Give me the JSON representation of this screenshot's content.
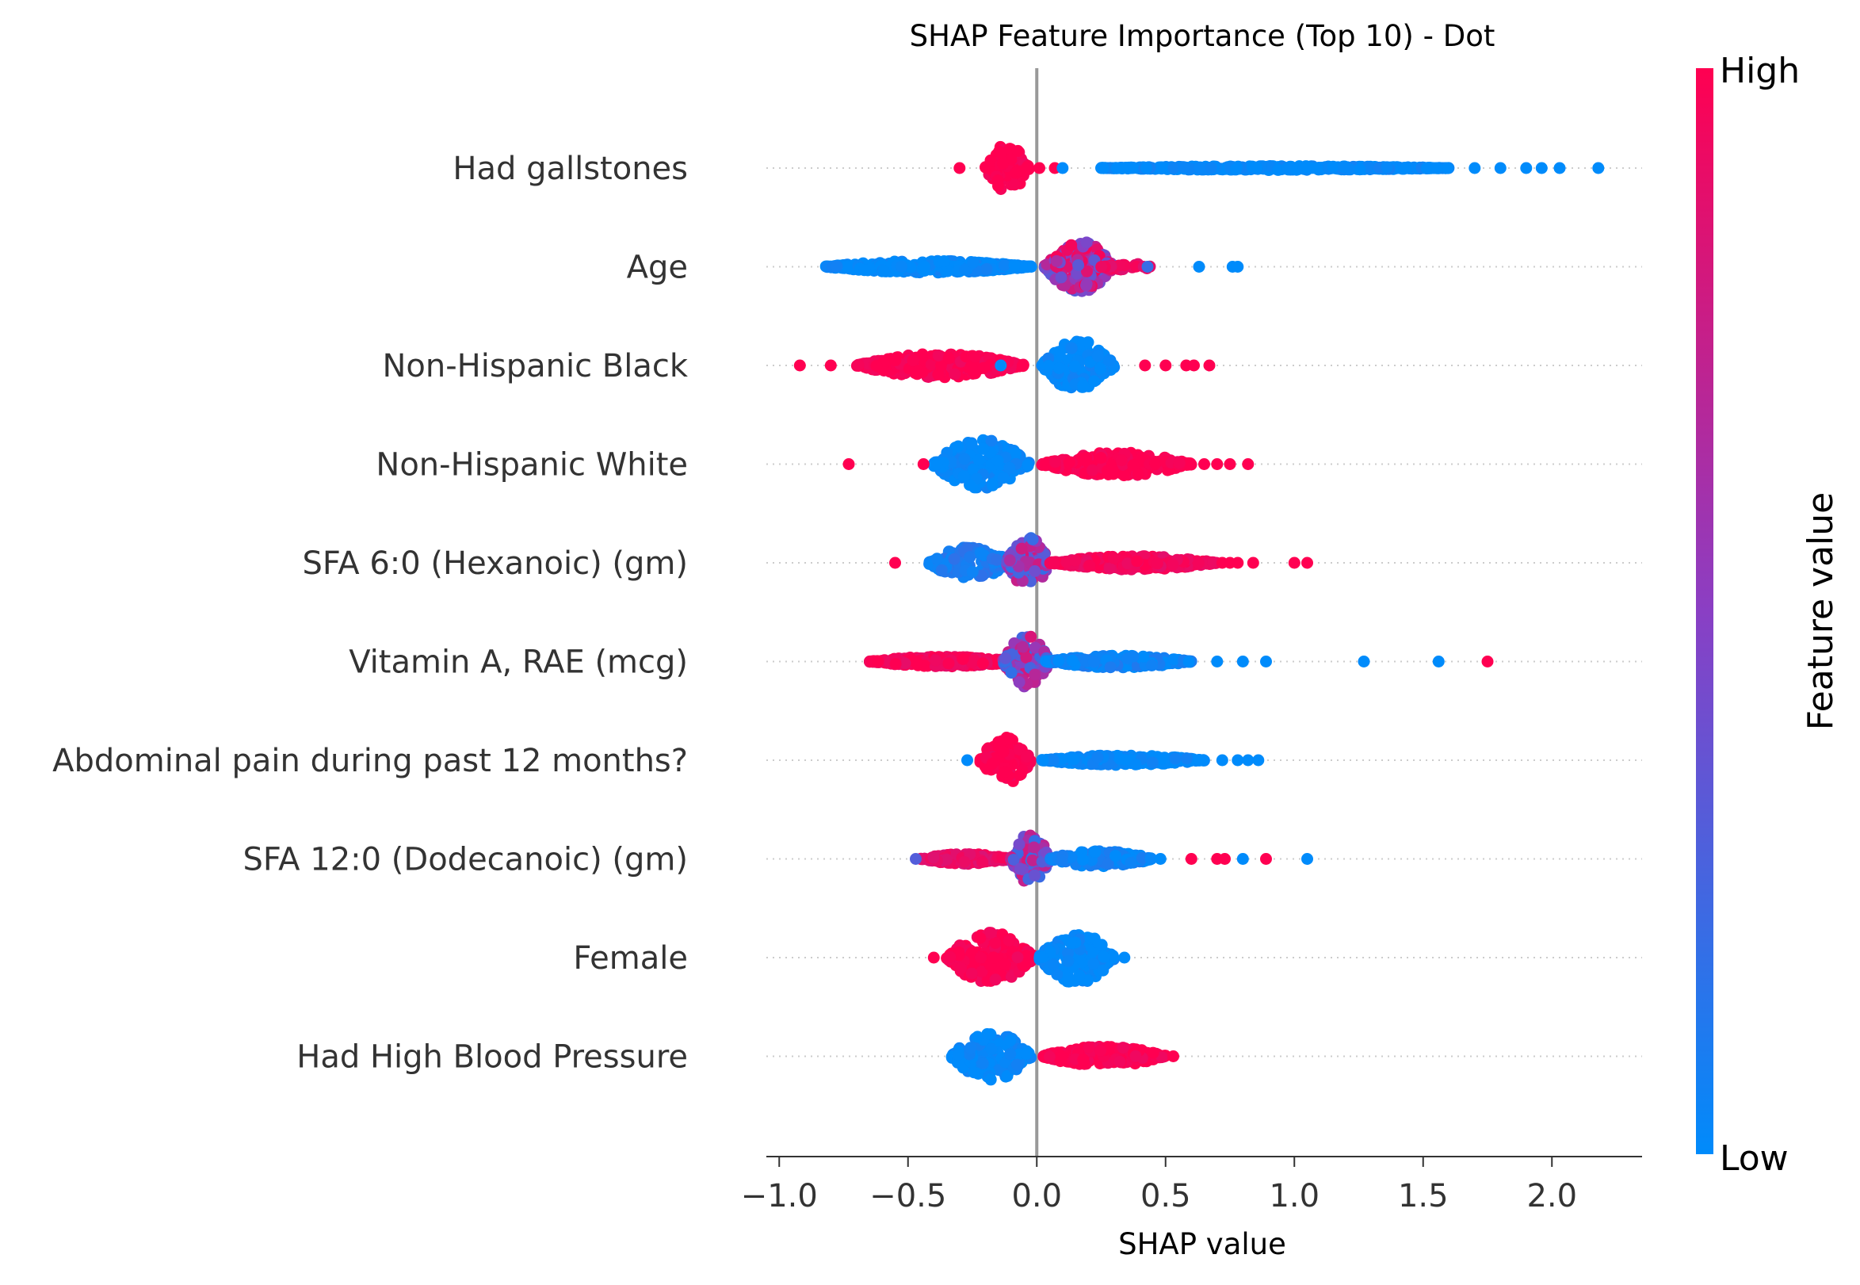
{
  "chart_data": {
    "type": "scatter",
    "subtype": "beeswarm",
    "title": "SHAP Feature Importance (Top 10) - Dot",
    "xlabel": "SHAP value",
    "xlim": [
      -1.05,
      2.35
    ],
    "xticks": [
      -1.0,
      -0.5,
      0.0,
      0.5,
      1.0,
      1.5,
      2.0
    ],
    "xtick_labels": [
      "−1.0",
      "−0.5",
      "0.0",
      "0.5",
      "1.0",
      "1.5",
      "2.0"
    ],
    "colorbar": {
      "label": "Feature value",
      "high_label": "High",
      "low_label": "Low",
      "low_color": "#008bfb",
      "mid_color": "#8a3fc4",
      "high_color": "#ff0051"
    },
    "zero_line_color": "#999999",
    "features": [
      {
        "name": "Had gallstones",
        "bulk": [
          {
            "x0": -0.2,
            "x1": -0.03,
            "w": 1.0,
            "spread": 0.24,
            "val": 1.0
          },
          {
            "x0": 0.25,
            "x1": 1.6,
            "w": 0.8,
            "spread": 0.02,
            "val": 0.0
          }
        ],
        "outliers": [
          [
            -0.3,
            1
          ],
          [
            -0.04,
            1
          ],
          [
            0.01,
            1
          ],
          [
            0.07,
            1
          ],
          [
            0.1,
            0
          ],
          [
            0.25,
            0
          ],
          [
            1.7,
            0
          ],
          [
            1.8,
            0
          ],
          [
            1.9,
            0
          ],
          [
            1.96,
            0
          ],
          [
            2.03,
            0
          ],
          [
            2.18,
            0
          ]
        ]
      },
      {
        "name": "Age",
        "bulk": [
          {
            "x0": -0.82,
            "x1": -0.02,
            "w": 1.0,
            "spread": 0.06,
            "val": 0.0
          },
          {
            "x0": 0.03,
            "x1": 0.3,
            "w": 1.4,
            "spread": 0.26,
            "val": 0.65
          },
          {
            "x0": 0.25,
            "x1": 0.45,
            "w": 0.3,
            "spread": 0.04,
            "val": 0.9
          }
        ],
        "outliers": [
          [
            0.43,
            0.2
          ],
          [
            0.63,
            0
          ],
          [
            0.76,
            0
          ],
          [
            0.78,
            0
          ]
        ]
      },
      {
        "name": "Non-Hispanic Black",
        "bulk": [
          {
            "x0": -0.7,
            "x1": -0.05,
            "w": 1.0,
            "spread": 0.12,
            "val": 1.0
          },
          {
            "x0": 0.02,
            "x1": 0.3,
            "w": 1.2,
            "spread": 0.26,
            "val": 0.0
          }
        ],
        "outliers": [
          [
            -0.92,
            1
          ],
          [
            -0.8,
            1
          ],
          [
            -0.14,
            0
          ],
          [
            0.42,
            1
          ],
          [
            0.5,
            1
          ],
          [
            0.58,
            1
          ],
          [
            0.61,
            1
          ],
          [
            0.67,
            1
          ]
        ]
      },
      {
        "name": "Non-Hispanic White",
        "bulk": [
          {
            "x0": -0.4,
            "x1": -0.03,
            "w": 1.0,
            "spread": 0.26,
            "val": 0.0
          },
          {
            "x0": 0.02,
            "x1": 0.6,
            "w": 1.0,
            "spread": 0.12,
            "val": 1.0
          }
        ],
        "outliers": [
          [
            -0.73,
            1
          ],
          [
            -0.44,
            1
          ],
          [
            0.65,
            1
          ],
          [
            0.7,
            1
          ],
          [
            0.75,
            1
          ],
          [
            0.82,
            1
          ]
        ]
      },
      {
        "name": "SFA 6:0 (Hexanoic) (gm)",
        "bulk": [
          {
            "x0": -0.42,
            "x1": -0.1,
            "w": 0.9,
            "spread": 0.16,
            "val": 0.1
          },
          {
            "x0": -0.12,
            "x1": 0.05,
            "w": 1.2,
            "spread": 0.26,
            "val": 0.5
          },
          {
            "x0": 0.05,
            "x1": 0.7,
            "w": 1.0,
            "spread": 0.07,
            "val": 0.95
          }
        ],
        "outliers": [
          [
            -0.55,
            1
          ],
          [
            0.72,
            1
          ],
          [
            0.75,
            1
          ],
          [
            0.78,
            1
          ],
          [
            0.84,
            1
          ],
          [
            1.0,
            1
          ],
          [
            1.05,
            1
          ]
        ]
      },
      {
        "name": "Vitamin A, RAE (mcg)",
        "bulk": [
          {
            "x0": -0.65,
            "x1": -0.08,
            "w": 1.0,
            "spread": 0.05,
            "val": 0.95
          },
          {
            "x0": -0.13,
            "x1": 0.05,
            "w": 1.2,
            "spread": 0.26,
            "val": 0.5
          },
          {
            "x0": 0.03,
            "x1": 0.6,
            "w": 1.0,
            "spread": 0.06,
            "val": 0.05
          }
        ],
        "outliers": [
          [
            0.7,
            0
          ],
          [
            0.8,
            0
          ],
          [
            0.89,
            0
          ],
          [
            1.27,
            0
          ],
          [
            1.56,
            0
          ],
          [
            1.75,
            1
          ]
        ]
      },
      {
        "name": "Abdominal pain during past 12 months?",
        "bulk": [
          {
            "x0": -0.22,
            "x1": -0.02,
            "w": 1.0,
            "spread": 0.24,
            "val": 1.0
          },
          {
            "x0": 0.02,
            "x1": 0.65,
            "w": 1.0,
            "spread": 0.05,
            "val": 0.0
          }
        ],
        "outliers": [
          [
            -0.27,
            0
          ],
          [
            0.72,
            0
          ],
          [
            0.78,
            0
          ],
          [
            0.82,
            0
          ],
          [
            0.86,
            0
          ]
        ]
      },
      {
        "name": "SFA 12:0 (Dodecanoic) (gm)",
        "bulk": [
          {
            "x0": -0.45,
            "x1": -0.1,
            "w": 1.0,
            "spread": 0.05,
            "val": 0.9
          },
          {
            "x0": -0.1,
            "x1": 0.05,
            "w": 1.1,
            "spread": 0.26,
            "val": 0.5
          },
          {
            "x0": 0.05,
            "x1": 0.45,
            "w": 1.0,
            "spread": 0.08,
            "val": 0.05
          }
        ],
        "outliers": [
          [
            -0.47,
            0.3
          ],
          [
            0.48,
            0
          ],
          [
            0.6,
            1
          ],
          [
            0.7,
            1
          ],
          [
            0.73,
            1
          ],
          [
            0.8,
            0
          ],
          [
            0.89,
            1
          ],
          [
            1.05,
            0
          ]
        ]
      },
      {
        "name": "Female",
        "bulk": [
          {
            "x0": -0.35,
            "x1": -0.01,
            "w": 1.2,
            "spread": 0.26,
            "val": 1.0
          },
          {
            "x0": 0.01,
            "x1": 0.3,
            "w": 1.2,
            "spread": 0.26,
            "val": 0.0
          }
        ],
        "outliers": [
          [
            -0.4,
            1
          ],
          [
            0.34,
            0
          ]
        ]
      },
      {
        "name": "Had High Blood Pressure",
        "bulk": [
          {
            "x0": -0.33,
            "x1": -0.02,
            "w": 1.0,
            "spread": 0.24,
            "val": 0.0
          },
          {
            "x0": 0.02,
            "x1": 0.5,
            "w": 1.0,
            "spread": 0.1,
            "val": 1.0
          }
        ],
        "outliers": [
          [
            0.53,
            1
          ]
        ]
      }
    ]
  }
}
